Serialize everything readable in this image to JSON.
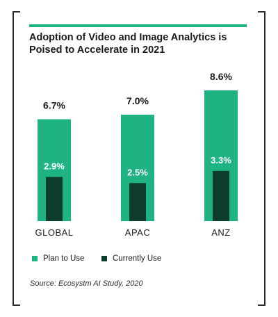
{
  "title": "Adoption of Video and Image Analytics is Poised to Accelerate in 2021",
  "legend": {
    "plan_label": "Plan to Use",
    "current_label": "Currently Use"
  },
  "source": "Source: Ecosystm AI Study, 2020",
  "colors": {
    "plan": "#1fb384",
    "current": "#0d3b2e",
    "accent_rule": "#1fb384",
    "bracket": "#2b2b2b"
  },
  "chart_data": {
    "type": "bar",
    "categories": [
      "GLOBAL",
      "APAC",
      "ANZ"
    ],
    "series": [
      {
        "name": "Plan to Use",
        "values": [
          6.7,
          7.0,
          8.6
        ],
        "labels": [
          "6.7%",
          "7.0%",
          "8.6%"
        ]
      },
      {
        "name": "Currently Use",
        "values": [
          2.9,
          2.5,
          3.3
        ],
        "labels": [
          "2.9%",
          "2.5%",
          "3.3%"
        ]
      }
    ],
    "ylim": [
      0,
      8.6
    ],
    "grid": false,
    "legend_position": "bottom-left"
  }
}
